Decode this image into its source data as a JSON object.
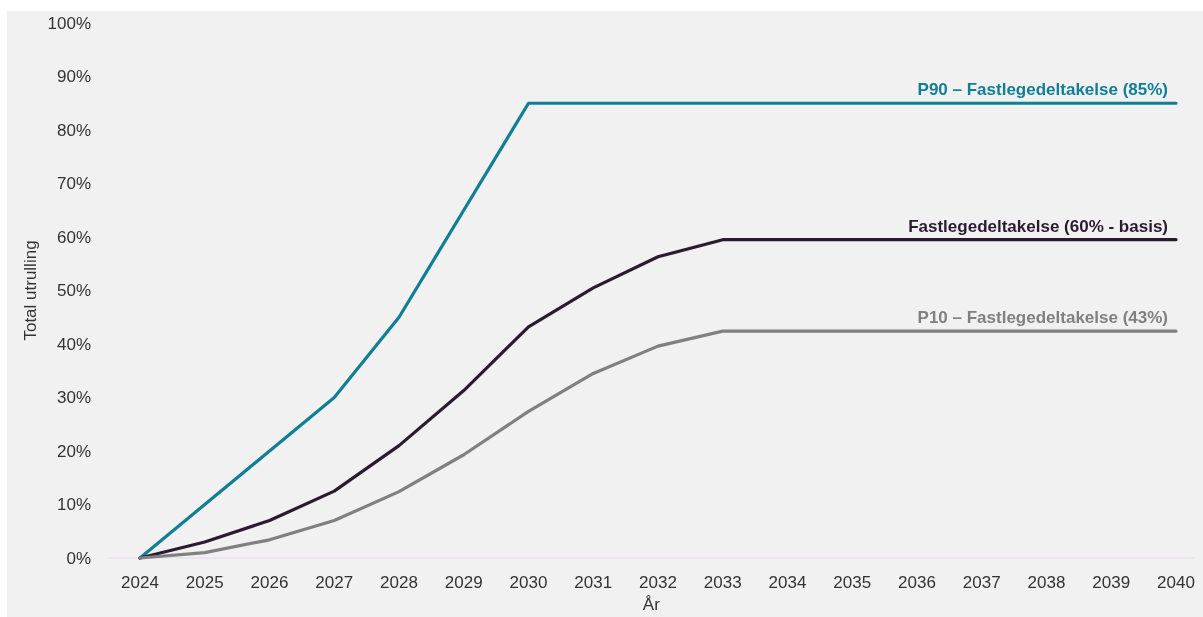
{
  "chart_data": {
    "type": "line",
    "xlabel": "År",
    "ylabel": "Total utrulling",
    "categories": [
      "2024",
      "2025",
      "2026",
      "2027",
      "2028",
      "2029",
      "2030",
      "2031",
      "2032",
      "2033",
      "2034",
      "2035",
      "2036",
      "2037",
      "2038",
      "2039",
      "2040"
    ],
    "ylim": [
      0,
      100
    ],
    "yticks": [
      {
        "value": 0,
        "label": "0%"
      },
      {
        "value": 10,
        "label": "10%"
      },
      {
        "value": 20,
        "label": "20%"
      },
      {
        "value": 30,
        "label": "30%"
      },
      {
        "value": 40,
        "label": "40%"
      },
      {
        "value": 50,
        "label": "50%"
      },
      {
        "value": 60,
        "label": "60%"
      },
      {
        "value": 70,
        "label": "70%"
      },
      {
        "value": 80,
        "label": "80%"
      },
      {
        "value": 90,
        "label": "90%"
      },
      {
        "value": 100,
        "label": "100%"
      }
    ],
    "series": [
      {
        "name": "P90 – Fastlegedeltakelse (85%)",
        "color": "#0f7f95",
        "values": [
          0,
          10,
          20,
          30,
          45,
          65,
          85,
          85,
          85,
          85,
          85,
          85,
          85,
          85,
          85,
          85,
          85
        ]
      },
      {
        "name": "Fastlegedeltakelse (60% - basis)",
        "color": "#2b1b2f",
        "values": [
          0,
          3,
          7,
          12.5,
          21,
          31.3,
          43.2,
          50.5,
          56.3,
          59.5,
          59.5,
          59.5,
          59.5,
          59.5,
          59.5,
          59.5,
          59.5
        ]
      },
      {
        "name": "P10 – Fastlegedeltakelse (43%)",
        "color": "#808080",
        "values": [
          0,
          1,
          3.4,
          7,
          12.4,
          19.3,
          27.4,
          34.5,
          39.6,
          42.4,
          42.4,
          42.4,
          42.4,
          42.4,
          42.4,
          42.4,
          42.4
        ]
      }
    ]
  }
}
